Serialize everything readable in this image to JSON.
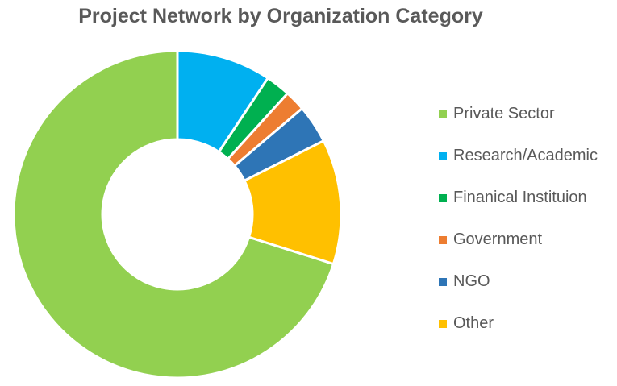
{
  "chart_data": {
    "type": "pie",
    "subtype": "donut",
    "title": "Project Network by Organization Category",
    "categories": [
      "Private Sector",
      "Research/Academic",
      "Finanical Instituion",
      "Government",
      "NGO",
      "Other"
    ],
    "values": [
      72.2,
      9.6,
      2.5,
      2.1,
      3.9,
      12.7
    ],
    "unit": "percent of total",
    "colors": [
      "#92d050",
      "#00b0f0",
      "#00b050",
      "#ed7d31",
      "#2e75b6",
      "#ffc000"
    ],
    "legend_position": "right",
    "start_angle": "top, clockwise; first slice ends at top"
  }
}
